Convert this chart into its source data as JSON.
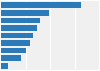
{
  "values": [
    13.1,
    7.9,
    6.4,
    5.8,
    5.3,
    4.7,
    4.0,
    3.2,
    1.2
  ],
  "bar_color": "#2b7bba",
  "background_color": "#ffffff",
  "plot_bg_color": "#f0f0f0",
  "grid_color": "#ffffff",
  "xlim": [
    0,
    16
  ],
  "figsize": [
    1.0,
    0.71
  ],
  "dpi": 100
}
